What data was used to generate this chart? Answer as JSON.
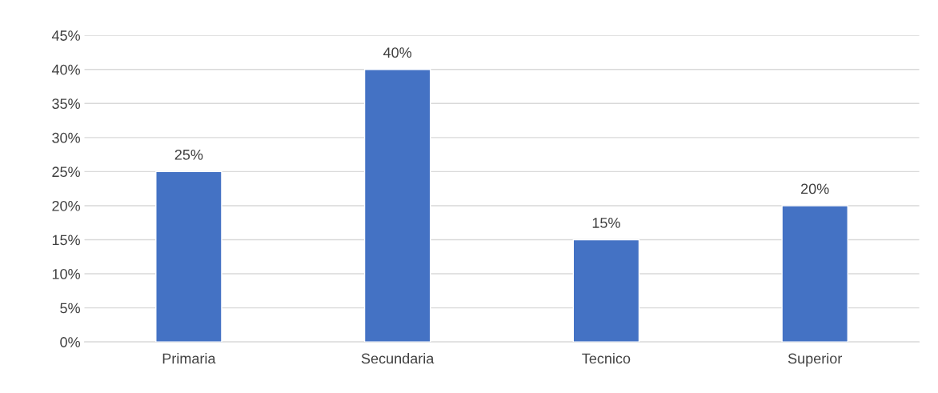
{
  "chart_data": {
    "type": "bar",
    "categories": [
      "Primaria",
      "Secundaria",
      "Tecnico",
      "Superior"
    ],
    "values": [
      25,
      40,
      15,
      20
    ],
    "value_labels": [
      "25%",
      "40%",
      "15%",
      "20%"
    ],
    "color": "#4472c4",
    "ylim": [
      0,
      45
    ],
    "yticks": [
      {
        "value": 0,
        "label": "0%"
      },
      {
        "value": 5,
        "label": "5%"
      },
      {
        "value": 10,
        "label": "10%"
      },
      {
        "value": 15,
        "label": "15%"
      },
      {
        "value": 20,
        "label": "20%"
      },
      {
        "value": 25,
        "label": "25%"
      },
      {
        "value": 30,
        "label": "30%"
      },
      {
        "value": 35,
        "label": "35%"
      },
      {
        "value": 40,
        "label": "40%"
      },
      {
        "value": 45,
        "label": "45%"
      }
    ],
    "grid": "y"
  }
}
